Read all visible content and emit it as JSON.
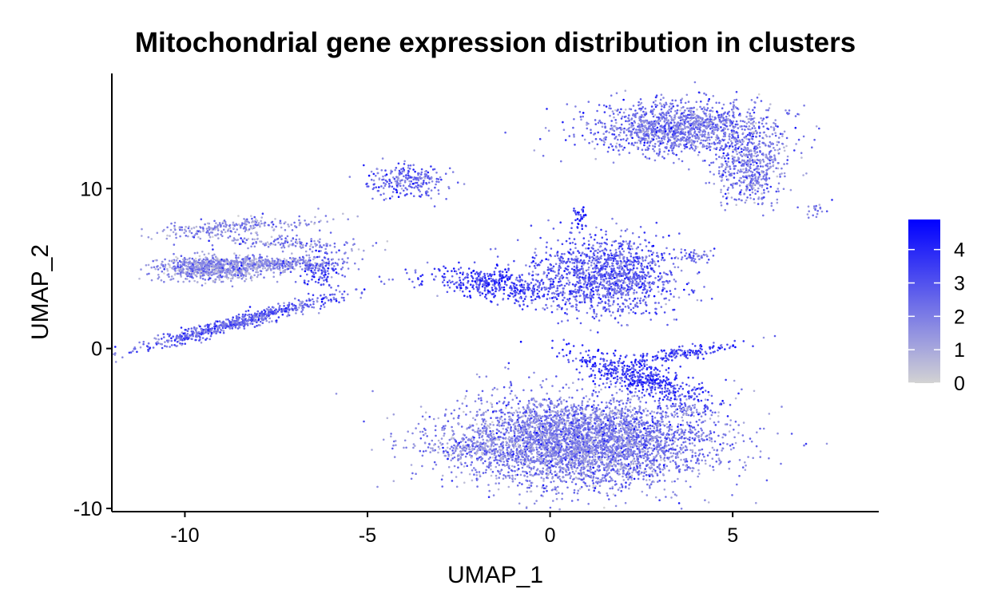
{
  "chart_data": {
    "type": "scatter",
    "title": "Mitochondrial gene expression distribution in clusters",
    "xlabel": "UMAP_1",
    "ylabel": "UMAP_2",
    "xlim": [
      -12,
      9
    ],
    "ylim": [
      -10.2,
      17.2
    ],
    "xticks": [
      -10,
      -5,
      0,
      5
    ],
    "yticks": [
      -10,
      0,
      10
    ],
    "grid": false,
    "legend": {
      "placement": "right",
      "ticks": [
        0,
        1,
        2,
        3,
        4
      ],
      "range": [
        0,
        4.9
      ]
    },
    "colors": {
      "low": "#d3d3d3",
      "high": "#0000ff"
    },
    "clusters": [
      {
        "cx": 0.9,
        "cy": -5.8,
        "sx": 1.75,
        "sy": 1.35,
        "n": 4200,
        "mean": 1.9
      },
      {
        "cx": 2.4,
        "cy": -1.8,
        "sx": 0.45,
        "sy": 1.2,
        "n": 500,
        "mean": 3.4,
        "rot": 0.85
      },
      {
        "cx": 3.6,
        "cy": -0.3,
        "sx": 0.9,
        "sy": 0.18,
        "n": 160,
        "mean": 3.2,
        "rot": 0.35
      },
      {
        "cx": 1.5,
        "cy": 4.5,
        "sx": 1.0,
        "sy": 1.2,
        "n": 1300,
        "mean": 2.6
      },
      {
        "cx": -1.5,
        "cy": 4.0,
        "sx": 1.0,
        "sy": 0.45,
        "n": 420,
        "mean": 3.2,
        "rot": -0.3
      },
      {
        "cx": 0.8,
        "cy": 8.3,
        "sx": 0.1,
        "sy": 0.4,
        "n": 40,
        "mean": 3.5
      },
      {
        "cx": 3.6,
        "cy": 13.8,
        "sx": 1.3,
        "sy": 0.85,
        "n": 1400,
        "mean": 2.1
      },
      {
        "cx": 5.5,
        "cy": 11.2,
        "sx": 0.5,
        "sy": 1.1,
        "n": 500,
        "mean": 1.8
      },
      {
        "cx": -3.9,
        "cy": 10.5,
        "sx": 0.55,
        "sy": 0.55,
        "n": 240,
        "mean": 2.4
      },
      {
        "cx": -9.3,
        "cy": 5.0,
        "sx": 0.75,
        "sy": 0.38,
        "n": 700,
        "mean": 1.5
      },
      {
        "cx": -7.7,
        "cy": 5.3,
        "sx": 0.9,
        "sy": 0.22,
        "n": 380,
        "mean": 1.6
      },
      {
        "cx": -8.7,
        "cy": 7.6,
        "sx": 1.2,
        "sy": 0.28,
        "n": 260,
        "mean": 1.5,
        "rot": 0.15
      },
      {
        "cx": -7.2,
        "cy": 6.6,
        "sx": 0.9,
        "sy": 0.2,
        "n": 150,
        "mean": 1.7,
        "rot": -0.1
      },
      {
        "cx": -8.6,
        "cy": 1.6,
        "sx": 1.6,
        "sy": 0.2,
        "n": 650,
        "mean": 2.5,
        "rot": 0.55
      },
      {
        "cx": -6.2,
        "cy": 5.0,
        "sx": 0.35,
        "sy": 0.6,
        "n": 130,
        "mean": 2.7
      },
      {
        "cx": 4.0,
        "cy": 5.8,
        "sx": 0.2,
        "sy": 0.22,
        "n": 45,
        "mean": 2.2
      },
      {
        "cx": 7.2,
        "cy": 8.7,
        "sx": 0.25,
        "sy": 0.25,
        "n": 20,
        "mean": 2.0
      },
      {
        "cx": 3.7,
        "cy": -3.9,
        "sx": 0.35,
        "sy": 0.2,
        "n": 50,
        "mean": 2.0
      },
      {
        "cx": -2.1,
        "cy": -6.3,
        "sx": 0.6,
        "sy": 0.4,
        "n": 150,
        "mean": 1.7
      }
    ]
  }
}
